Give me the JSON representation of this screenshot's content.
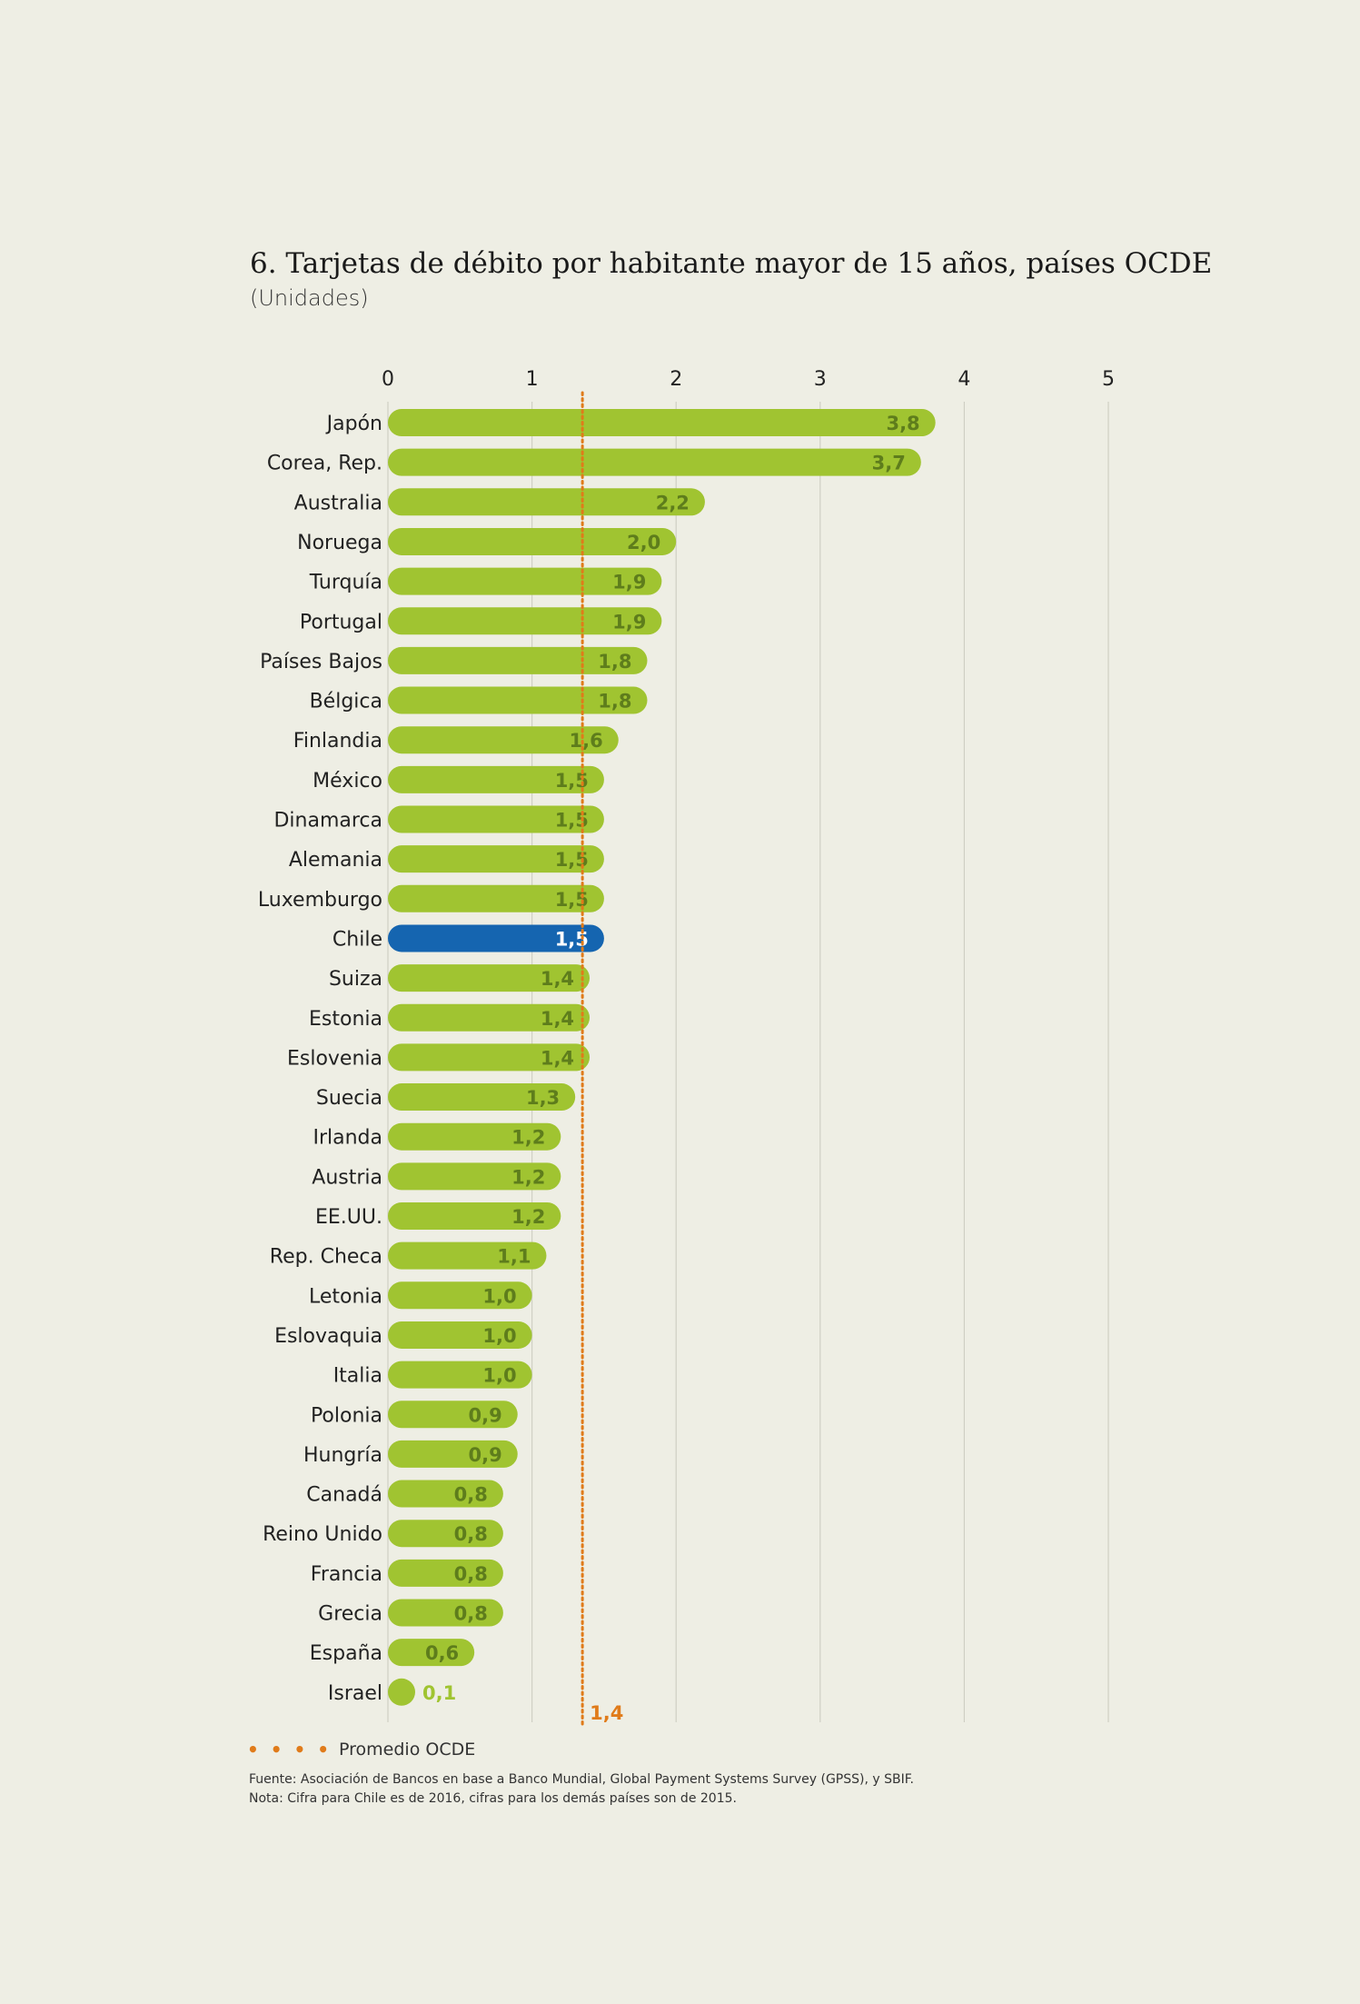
{
  "chart_data": {
    "type": "bar",
    "orientation": "horizontal",
    "title": "6. Tarjetas de débito por habitante mayor de 15 años, países OCDE",
    "subtitle": "(Unidades)",
    "xlim": [
      0,
      5
    ],
    "ticks": [
      "0",
      "1",
      "2",
      "3",
      "4",
      "5"
    ],
    "grid": true,
    "categories": [
      "Japón",
      "Corea, Rep.",
      "Australia",
      "Noruega",
      "Turquía",
      "Portugal",
      "Países Bajos",
      "Bélgica",
      "Finlandia",
      "México",
      "Dinamarca",
      "Alemania",
      "Luxemburgo",
      "Chile",
      "Suiza",
      "Estonia",
      "Eslovenia",
      "Suecia",
      "Irlanda",
      "Austria",
      "EE.UU.",
      "Rep. Checa",
      "Letonia",
      "Eslovaquia",
      "Italia",
      "Polonia",
      "Hungría",
      "Canadá",
      "Reino Unido",
      "Francia",
      "Grecia",
      "España",
      "Israel"
    ],
    "values": [
      3.8,
      3.7,
      2.2,
      2.0,
      1.9,
      1.9,
      1.8,
      1.8,
      1.6,
      1.5,
      1.5,
      1.5,
      1.5,
      1.5,
      1.4,
      1.4,
      1.4,
      1.3,
      1.2,
      1.2,
      1.2,
      1.1,
      1.0,
      1.0,
      1.0,
      0.9,
      0.9,
      0.8,
      0.8,
      0.8,
      0.8,
      0.6,
      0.1
    ],
    "value_labels": [
      "3,8",
      "3,7",
      "2,2",
      "2,0",
      "1,9",
      "1,9",
      "1,8",
      "1,8",
      "1,6",
      "1,5",
      "1,5",
      "1,5",
      "1,5",
      "1,5",
      "1,4",
      "1,4",
      "1,4",
      "1,3",
      "1,2",
      "1,2",
      "1,2",
      "1,1",
      "1,0",
      "1,0",
      "1,0",
      "0,9",
      "0,9",
      "0,8",
      "0,8",
      "0,8",
      "0,8",
      "0,6",
      "0,1"
    ],
    "highlight": "Chile",
    "reference_line": {
      "value": 1.35,
      "label": "1,4",
      "name": "Promedio OCDE"
    },
    "colors": {
      "bar": "#a0c431",
      "highlight": "#1565b0",
      "value_text": "#5e7d1c",
      "highlight_text": "#ffffff",
      "reference": "#e07b1a",
      "grid": "#cfcfc4"
    }
  },
  "legend": {
    "dots": "• • • •",
    "label": "Promedio OCDE"
  },
  "source": "Fuente: Asociación de Bancos en base a Banco Mundial, Global Payment Systems Survey (GPSS), y SBIF.",
  "note": "Nota: Cifra para Chile es de 2016, cifras para los demás países son de 2015."
}
